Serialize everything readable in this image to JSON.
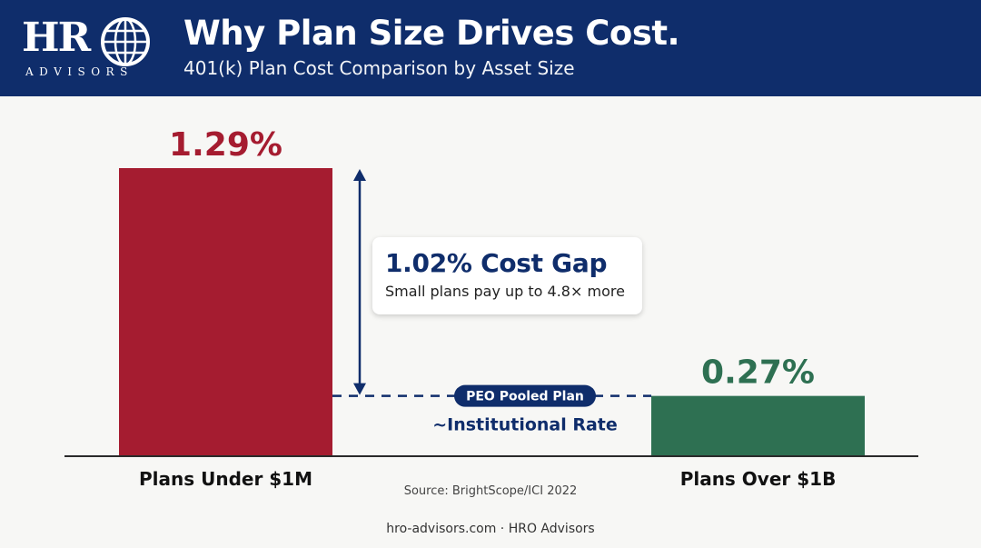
{
  "header": {
    "logo_text": "HRO",
    "logo_subtext": "ADVISORS",
    "title": "Why Plan Size Drives Cost.",
    "subtitle": "401(k) Plan Cost Comparison by Asset Size"
  },
  "chart_data": {
    "type": "bar",
    "categories": [
      "Plans Under $1M",
      "Plans Over $1B"
    ],
    "values": [
      1.29,
      0.27
    ],
    "value_labels": [
      "1.29%",
      "0.27%"
    ],
    "colors": [
      "#a51c30",
      "#2e7052"
    ],
    "ylim": [
      0,
      1.29
    ],
    "reference_line": {
      "value": 0.27,
      "badge": "PEO Pooled Plan",
      "label": "~Institutional Rate"
    },
    "annotation": {
      "title": "1.02% Cost Gap",
      "subtitle": "Small plans pay up to 4.8× more"
    }
  },
  "source": "Source: BrightScope/ICI 2022",
  "footer": "hro-advisors.com · HRO Advisors",
  "colors": {
    "header_bg": "#0f2d6b",
    "accent_navy": "#0f2d6b",
    "bar_small": "#a51c30",
    "bar_large": "#2e7052"
  }
}
